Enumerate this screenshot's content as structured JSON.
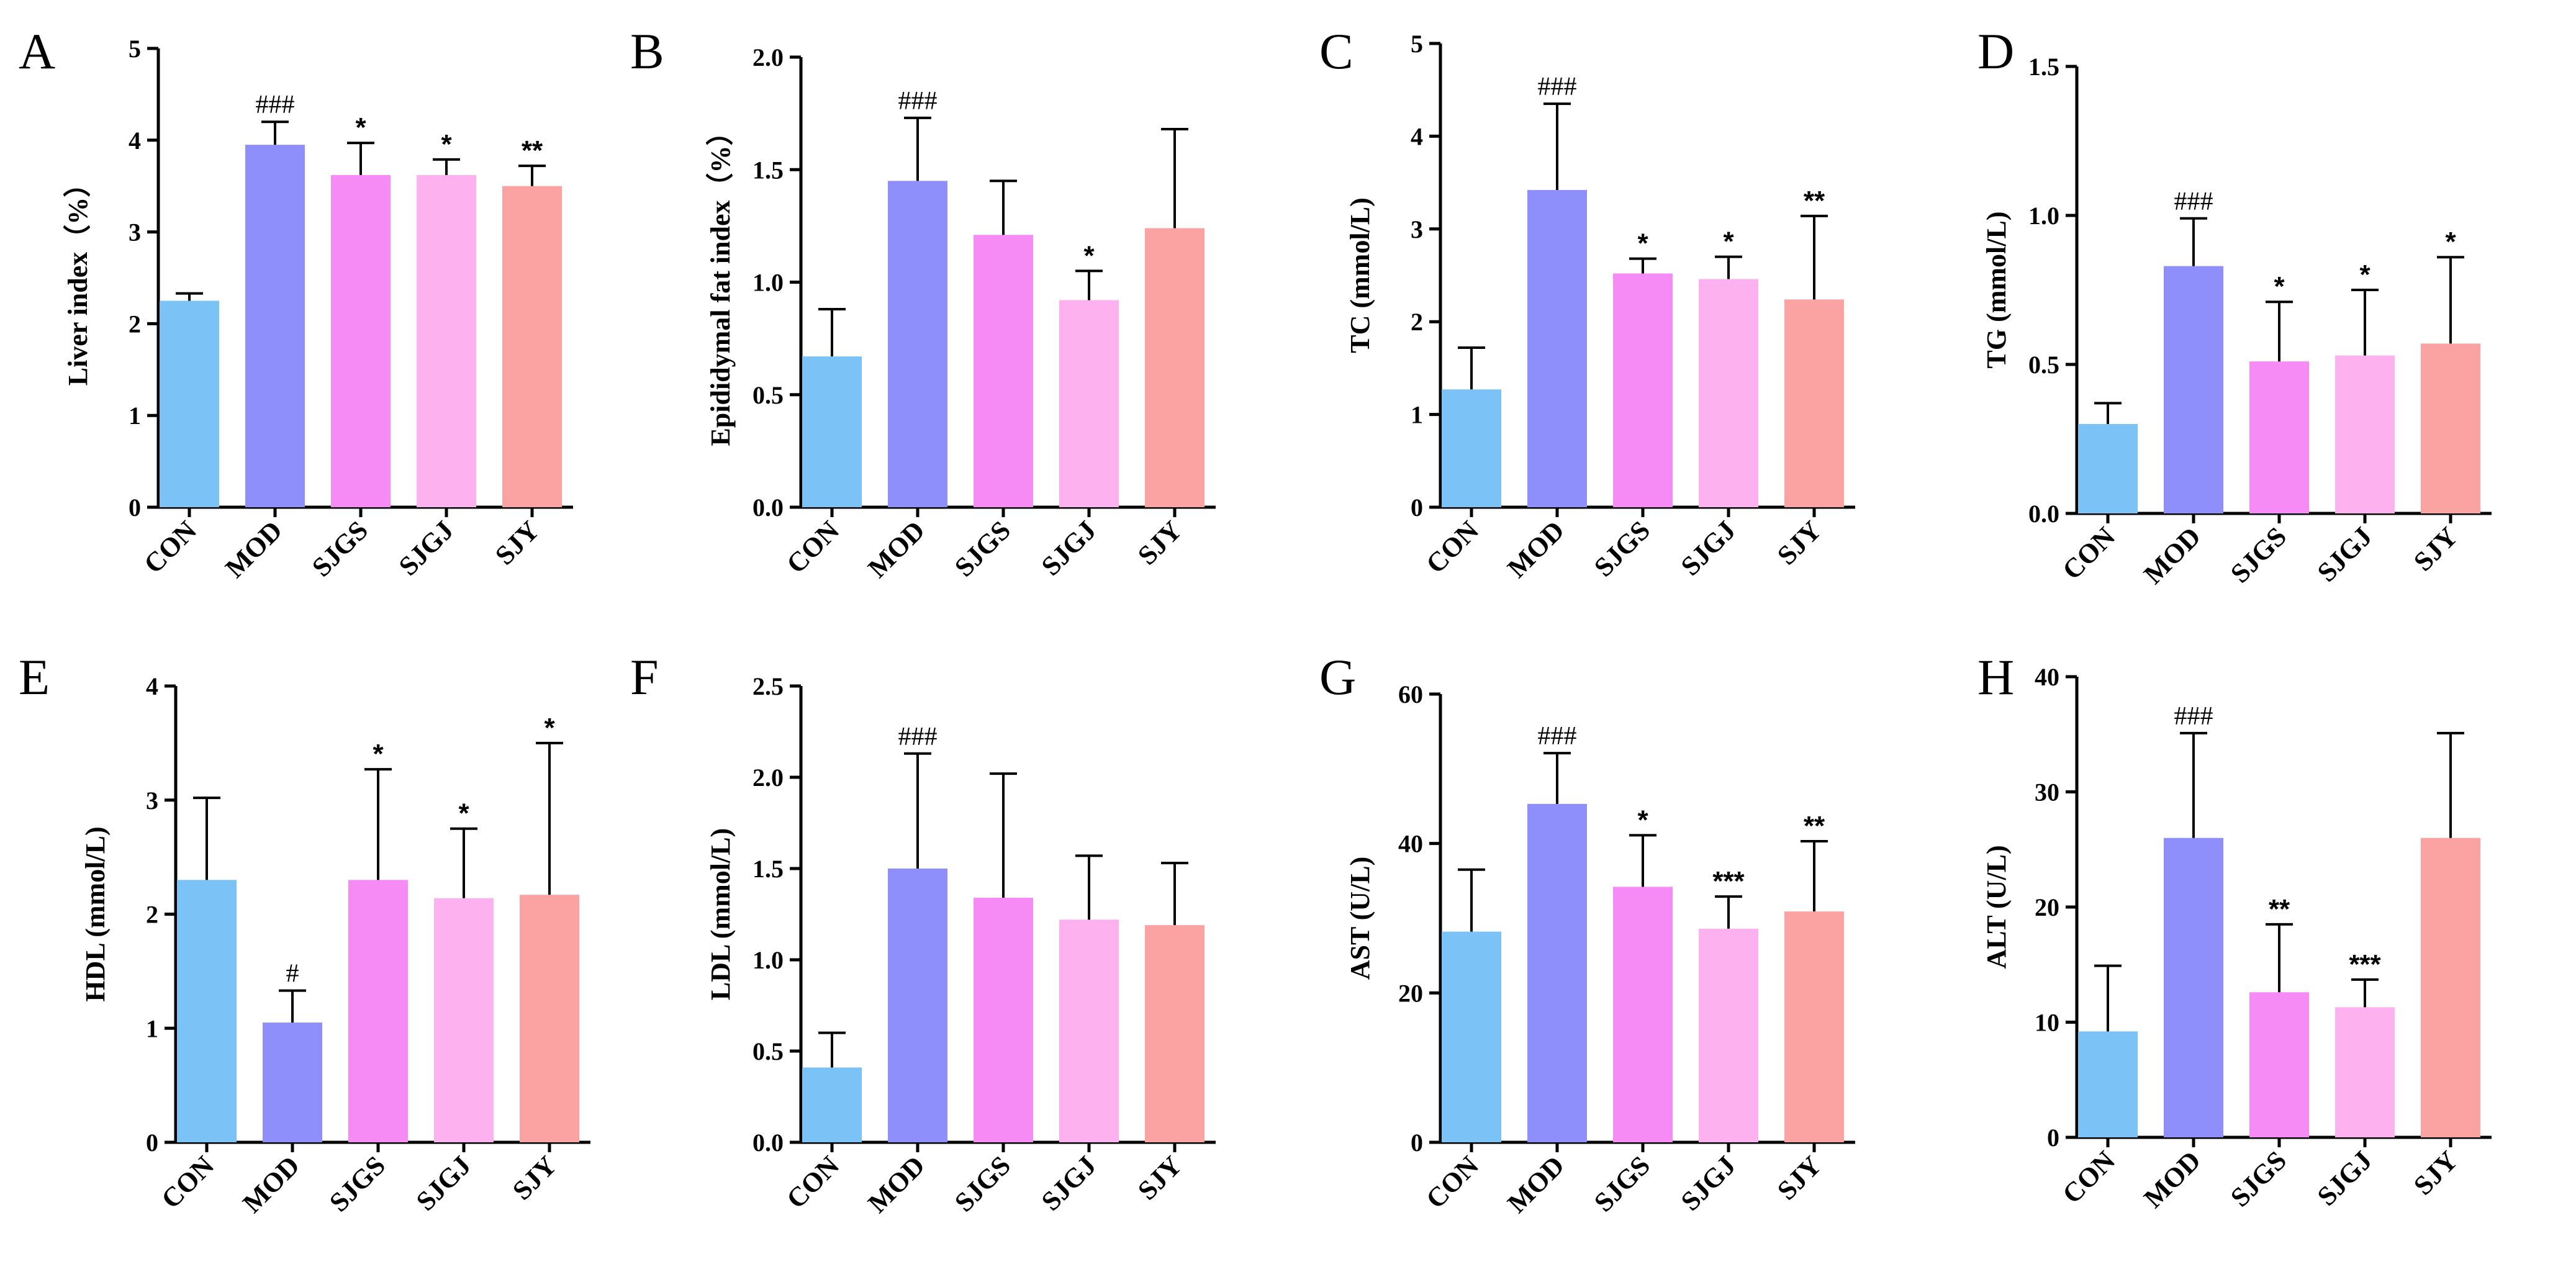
{
  "colors": [
    "#7bc2f7",
    "#8f8ffc",
    "#f68bf5",
    "#fdb1ee",
    "#fba3a3"
  ],
  "chart_data": [
    {
      "panel": "A",
      "type": "bar",
      "ylabel": "Liver index（%）",
      "categories": [
        "CON",
        "MOD",
        "SJGS",
        "SJGJ",
        "SJY"
      ],
      "values": [
        2.25,
        3.95,
        3.62,
        3.62,
        3.5
      ],
      "errors": [
        0.08,
        0.25,
        0.35,
        0.17,
        0.22
      ],
      "significance": [
        "",
        "###",
        "*",
        "*",
        "**"
      ],
      "ylim": [
        0,
        5
      ],
      "yticks": [
        "0",
        "1",
        "2",
        "3",
        "4",
        "5"
      ]
    },
    {
      "panel": "B",
      "type": "bar",
      "ylabel": "Epididymal fat index（%）",
      "categories": [
        "CON",
        "MOD",
        "SJGS",
        "SJGJ",
        "SJY"
      ],
      "values": [
        0.67,
        1.45,
        1.21,
        0.92,
        1.24
      ],
      "errors": [
        0.21,
        0.28,
        0.24,
        0.13,
        0.44
      ],
      "significance": [
        "",
        "###",
        "",
        "*",
        ""
      ],
      "ylim": [
        0,
        2
      ],
      "yticks": [
        "0.0",
        "0.5",
        "1.0",
        "1.5",
        "2.0"
      ]
    },
    {
      "panel": "C",
      "type": "bar",
      "ylabel": "TC (mmol/L)",
      "categories": [
        "CON",
        "MOD",
        "SJGS",
        "SJGJ",
        "SJY"
      ],
      "values": [
        1.27,
        3.42,
        2.52,
        2.46,
        2.24
      ],
      "errors": [
        0.45,
        0.93,
        0.16,
        0.24,
        0.9
      ],
      "significance": [
        "",
        "###",
        "*",
        "*",
        "**"
      ],
      "ylim": [
        0,
        5
      ],
      "yticks": [
        "0",
        "1",
        "2",
        "3",
        "4",
        "5"
      ]
    },
    {
      "panel": "D",
      "type": "bar",
      "ylabel": "TG (mmol/L)",
      "categories": [
        "CON",
        "MOD",
        "SJGS",
        "SJGJ",
        "SJY"
      ],
      "values": [
        0.3,
        0.83,
        0.51,
        0.53,
        0.57
      ],
      "errors": [
        0.07,
        0.16,
        0.2,
        0.22,
        0.29
      ],
      "significance": [
        "",
        "###",
        "*",
        "*",
        "*"
      ],
      "ylim": [
        0,
        1.5
      ],
      "yticks": [
        "0.0",
        "0.5",
        "1.0",
        "1.5"
      ]
    },
    {
      "panel": "E",
      "type": "bar",
      "ylabel": "HDL (mmol/L)",
      "categories": [
        "CON",
        "MOD",
        "SJGS",
        "SJGJ",
        "SJY"
      ],
      "values": [
        2.3,
        1.05,
        2.3,
        2.14,
        2.17
      ],
      "errors": [
        0.72,
        0.28,
        0.97,
        0.61,
        1.33
      ],
      "significance": [
        "",
        "#",
        "*",
        "*",
        "*"
      ],
      "ylim": [
        0,
        4
      ],
      "yticks": [
        "0",
        "1",
        "2",
        "3",
        "4"
      ]
    },
    {
      "panel": "F",
      "type": "bar",
      "ylabel": "LDL (mmol/L)",
      "categories": [
        "CON",
        "MOD",
        "SJGS",
        "SJGJ",
        "SJY"
      ],
      "values": [
        0.41,
        1.5,
        1.34,
        1.22,
        1.19
      ],
      "errors": [
        0.19,
        0.63,
        0.68,
        0.35,
        0.34
      ],
      "significance": [
        "",
        "###",
        "",
        "",
        ""
      ],
      "ylim": [
        0,
        2.5
      ],
      "yticks": [
        "0.0",
        "0.5",
        "1.0",
        "1.5",
        "2.0",
        "2.5"
      ]
    },
    {
      "panel": "G",
      "type": "bar",
      "ylabel": "AST (U/L)",
      "categories": [
        "CON",
        "MOD",
        "SJGS",
        "SJGJ",
        "SJY"
      ],
      "values": [
        28.2,
        45.3,
        34.2,
        28.6,
        30.9
      ],
      "errors": [
        8.3,
        6.8,
        6.9,
        4.3,
        9.4
      ],
      "significance": [
        "",
        "###",
        "*",
        "***",
        "**"
      ],
      "ylim": [
        0,
        60
      ],
      "yticks": [
        "0",
        "20",
        "40",
        "60"
      ]
    },
    {
      "panel": "H",
      "type": "bar",
      "ylabel": "ALT (U/L)",
      "categories": [
        "CON",
        "MOD",
        "SJGS",
        "SJGJ",
        "SJY"
      ],
      "values": [
        9.2,
        26.0,
        12.6,
        11.3,
        26.0
      ],
      "errors": [
        5.7,
        9.1,
        5.9,
        2.4,
        9.1
      ],
      "significance": [
        "",
        "###",
        "**",
        "***",
        ""
      ],
      "ylim": [
        0,
        40
      ],
      "yticks": [
        "0",
        "10",
        "20",
        "30",
        "40"
      ]
    }
  ]
}
